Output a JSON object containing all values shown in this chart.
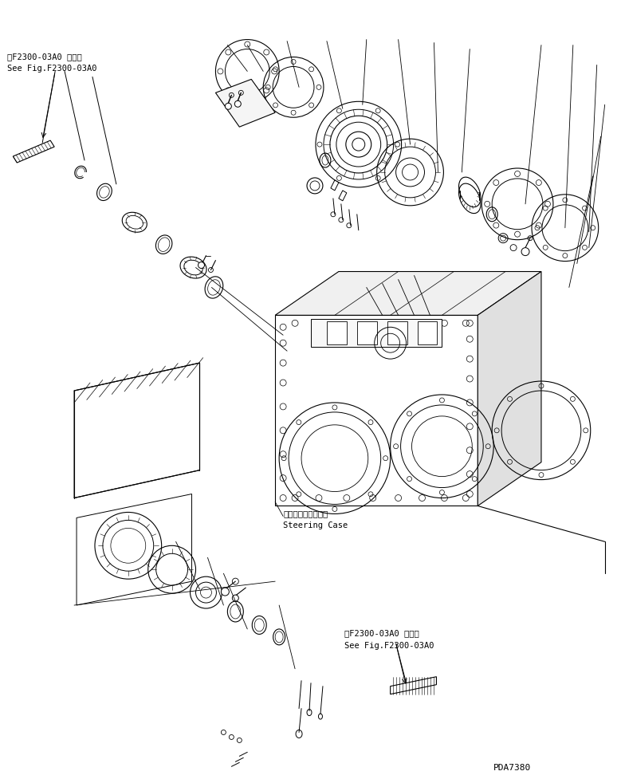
{
  "background_color": "#ffffff",
  "line_color": "#000000",
  "fig_width": 7.79,
  "fig_height": 9.77,
  "dpi": 100,
  "text_top_left_line1": "第F2300-03A0 図参照",
  "text_top_left_line2": "See Fig.F2300-03A0",
  "text_bottom_ref_line1": "第F2300-03A0 図参照",
  "text_bottom_ref_line2": "See Fig.F2300-03A0",
  "text_steering_jp": "ステアリングケース",
  "text_steering_en": "Steering Case",
  "text_part_id": "PDA7380",
  "font_size_label": 7.5,
  "font_size_id": 8
}
